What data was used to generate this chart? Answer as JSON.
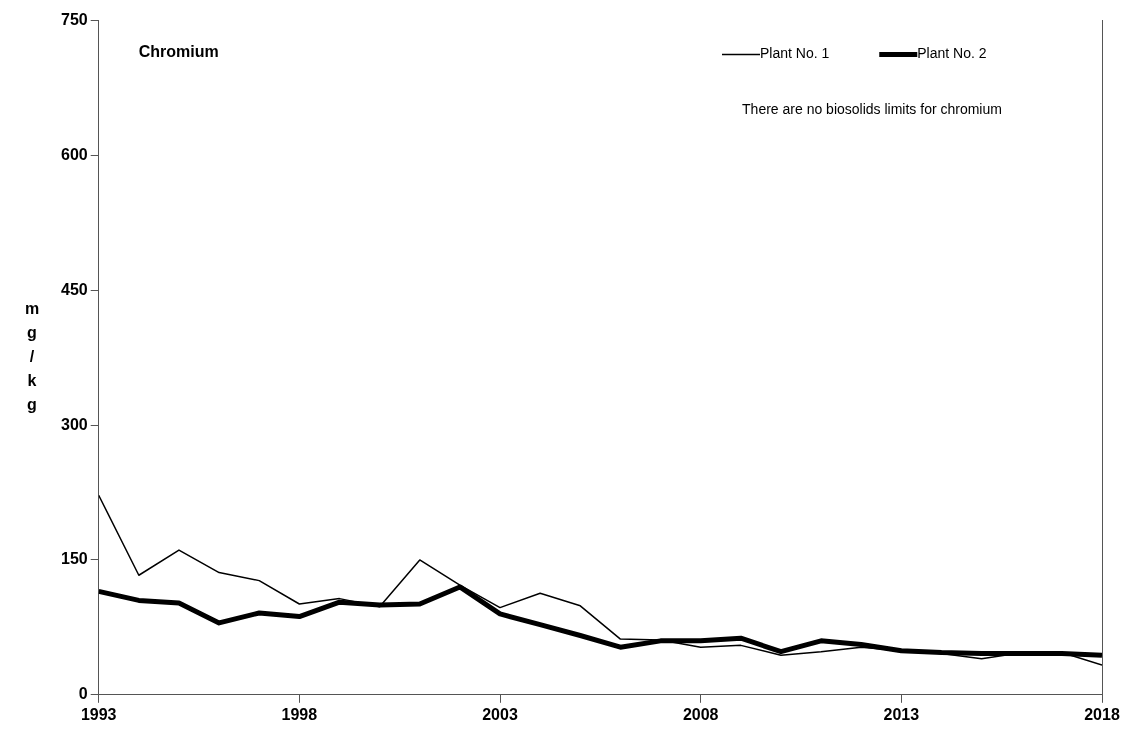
{
  "chart_data": {
    "type": "line",
    "title": "Chromium",
    "ylabel": "mg/kg",
    "annotations": [
      "There are no biosolids limits for chromium"
    ],
    "x": [
      1993,
      1994,
      1995,
      1996,
      1997,
      1998,
      1999,
      2000,
      2001,
      2002,
      2003,
      2004,
      2005,
      2006,
      2007,
      2008,
      2009,
      2010,
      2011,
      2012,
      2013,
      2014,
      2015,
      2016,
      2017,
      2018
    ],
    "series": [
      {
        "name": "Plant No. 1",
        "color": "#000000",
        "values": [
          222,
          133,
          161,
          136,
          127,
          101,
          107,
          98,
          150,
          122,
          97,
          113,
          99,
          62,
          61,
          53,
          55,
          44,
          48,
          53,
          49,
          46,
          40,
          47,
          47,
          33
        ]
      },
      {
        "name": "Plant No. 2",
        "color": "#000000",
        "values": [
          115,
          105,
          102,
          80,
          91,
          87,
          103,
          100,
          101,
          120,
          90,
          78,
          66,
          53,
          60,
          60,
          63,
          48,
          60,
          56,
          49,
          47,
          46,
          46,
          46,
          44
        ]
      }
    ],
    "xlim": [
      1993,
      2018
    ],
    "xticks": [
      1993,
      1998,
      2003,
      2008,
      2013,
      2018
    ],
    "ylim": [
      0,
      750
    ],
    "yticks": [
      0,
      150,
      300,
      450,
      600,
      750
    ],
    "grid": false,
    "legend": "top right",
    "marker": "none",
    "line_style": "solid"
  }
}
